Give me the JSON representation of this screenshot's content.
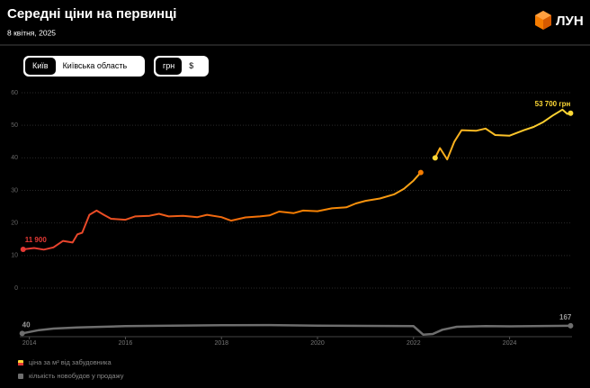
{
  "header": {
    "title": "Середні ціни на первинці",
    "date": "8 квітня, 2025",
    "logo": "ЛУН"
  },
  "controls": [
    {
      "options": [
        "Київ",
        "Київська область"
      ],
      "selected": 0
    },
    {
      "options": [
        "грн",
        "$"
      ],
      "selected": 0
    }
  ],
  "chart_data": [
    {
      "type": "line",
      "xlim": [
        2013.8,
        2025.3
      ],
      "ylim": [
        0,
        60
      ],
      "yticks": [
        0,
        10,
        20,
        30,
        40,
        50,
        60
      ],
      "grid": true,
      "x": [
        2013.87,
        2014.1,
        2014.3,
        2014.5,
        2014.7,
        2014.9,
        2015.0,
        2015.1,
        2015.25,
        2015.4,
        2015.55,
        2015.7,
        2016.0,
        2016.2,
        2016.5,
        2016.7,
        2016.9,
        2017.2,
        2017.5,
        2017.7,
        2018.0,
        2018.2,
        2018.5,
        2018.8,
        2019.0,
        2019.2,
        2019.5,
        2019.7,
        2020.0,
        2020.3,
        2020.6,
        2020.8,
        2021.0,
        2021.3,
        2021.6,
        2021.8,
        2022.0,
        2022.15,
        2022.3,
        2022.45,
        2022.55,
        2022.7,
        2022.85,
        2023.0,
        2023.3,
        2023.5,
        2023.7,
        2024.0,
        2024.3,
        2024.5,
        2024.7,
        2024.9,
        2025.1,
        2025.2,
        2025.27
      ],
      "series": [
        {
          "name": "ціна за м² від забудовника",
          "color": "#f5a623",
          "gradient_colors": [
            "#e53935",
            "#f57c00",
            "#fdd835"
          ],
          "values": [
            11.9,
            12.3,
            11.8,
            12.5,
            14.5,
            14.0,
            16.5,
            17,
            22.5,
            23.8,
            22.5,
            21.3,
            21.0,
            22.0,
            22.2,
            22.8,
            22.0,
            22.2,
            21.8,
            22.5,
            21.8,
            20.7,
            21.7,
            22.0,
            22.3,
            23.5,
            23.0,
            23.8,
            23.6,
            24.5,
            24.8,
            26.0,
            26.8,
            27.5,
            28.8,
            30.5,
            33,
            35.5,
            null,
            40,
            43,
            39.5,
            45,
            48.5,
            48.3,
            49,
            47,
            46.8,
            48.5,
            49.5,
            51,
            53,
            54.8,
            53.5,
            53.7
          ],
          "value_labels": [
            "11 900",
            null,
            null,
            null,
            null,
            null,
            null,
            null,
            null,
            null,
            null,
            null,
            null,
            null,
            null,
            null,
            null,
            null,
            null,
            null,
            null,
            null,
            null,
            null,
            null,
            null,
            null,
            null,
            null,
            null,
            null,
            null,
            null,
            null,
            null,
            null,
            null,
            null,
            null,
            null,
            null,
            null,
            null,
            null,
            null,
            null,
            null,
            null,
            null,
            null,
            null,
            null,
            null,
            null,
            "53 700 грн"
          ]
        }
      ]
    },
    {
      "type": "line",
      "xlim": [
        2013.8,
        2025.3
      ],
      "ylim": [
        0,
        300
      ],
      "xticks": [
        2014,
        2016,
        2018,
        2020,
        2022,
        2024
      ],
      "end_labels": true,
      "x": [
        2013.85,
        2014.2,
        2014.5,
        2015.0,
        2016.0,
        2017.0,
        2018.0,
        2019.0,
        2020.0,
        2021.0,
        2022.0,
        2022.2,
        2022.4,
        2022.6,
        2022.9,
        2023.5,
        2024.0,
        2025.0,
        2025.27
      ],
      "series": [
        {
          "name": "кількість новобудов у продажу",
          "color": "#6e6e6e",
          "values": [
            40,
            95,
            120,
            140,
            160,
            170,
            175,
            178,
            170,
            165,
            160,
            20,
            30,
            100,
            150,
            160,
            158,
            165,
            167
          ]
        }
      ]
    }
  ]
}
